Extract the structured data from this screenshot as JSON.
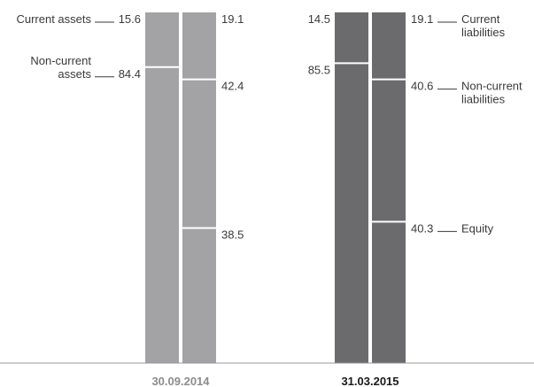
{
  "chart_data": {
    "type": "bar",
    "stacked": true,
    "categories": [
      "30.09.2014",
      "31.03.2015"
    ],
    "groups": [
      {
        "category": "30.09.2014",
        "color": "#a3a3a5",
        "label_color": "#8c8c8e",
        "assets": [
          {
            "name": "Current assets",
            "label": "Current assets",
            "value": 15.6
          },
          {
            "name": "Non-current assets",
            "label": "Non-current\nassets",
            "value": 84.4
          }
        ],
        "liabilities": [
          {
            "name": "Current liabilities",
            "label": "",
            "value": 19.1
          },
          {
            "name": "Non-current liabilities",
            "label": "",
            "value": 42.4
          },
          {
            "name": "Equity",
            "label": "",
            "value": 38.5
          }
        ]
      },
      {
        "category": "31.03.2015",
        "color": "#6b6b6e",
        "label_color": "#1a1a1a",
        "assets": [
          {
            "name": "Current assets",
            "label": "",
            "value": 14.5
          },
          {
            "name": "Non-current assets",
            "label": "",
            "value": 85.5
          }
        ],
        "liabilities": [
          {
            "name": "Current liabilities",
            "label": "Current\nliabilities",
            "value": 19.1
          },
          {
            "name": "Non-current liabilities",
            "label": "Non-current\nliabilities",
            "value": 40.6
          },
          {
            "name": "Equity",
            "label": "Equity",
            "value": 40.3
          }
        ]
      }
    ],
    "colors": {
      "baseline": "#9a9a9a",
      "text": "#3a3a3a"
    }
  }
}
